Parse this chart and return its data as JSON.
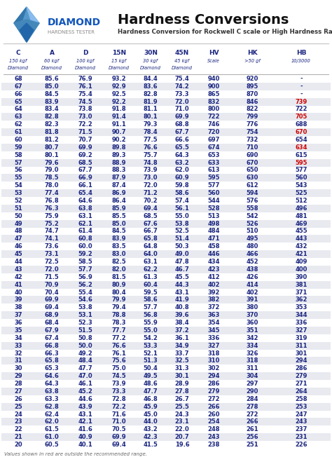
{
  "title": "Hardness Conversions",
  "subtitle": "Hardness Conversion for Rockwell C scale or High Hardness Range",
  "col_headers": [
    "C",
    "A",
    "D",
    "15N",
    "30N",
    "45N",
    "HV",
    "HK",
    "HB"
  ],
  "col_sub1": [
    "150 kgf",
    "60 kgf",
    "100 kgf",
    "15 kgf",
    "30 kgf",
    "45 kgf",
    "Scale",
    ">50 gf",
    "10/3000"
  ],
  "col_sub2": [
    "Diamond",
    "Diamond",
    "Diamond",
    "Diamond",
    "Diamond",
    "Diamond",
    "",
    "",
    ""
  ],
  "rows": [
    [
      68,
      85.6,
      76.9,
      93.2,
      84.4,
      75.4,
      940,
      920,
      "-"
    ],
    [
      67,
      85.0,
      76.1,
      92.9,
      83.6,
      74.2,
      900,
      895,
      "-"
    ],
    [
      66,
      84.5,
      75.4,
      92.5,
      82.8,
      73.3,
      865,
      870,
      "-"
    ],
    [
      65,
      83.9,
      74.5,
      92.2,
      81.9,
      72.0,
      832,
      846,
      "739"
    ],
    [
      64,
      83.4,
      73.8,
      91.8,
      81.1,
      71.0,
      800,
      822,
      "722"
    ],
    [
      63,
      82.8,
      73.0,
      91.4,
      80.1,
      69.9,
      722,
      799,
      "705"
    ],
    [
      62,
      82.3,
      72.2,
      91.1,
      79.3,
      68.8,
      746,
      776,
      "688"
    ],
    [
      61,
      81.8,
      71.5,
      90.7,
      78.4,
      67.7,
      720,
      754,
      "670"
    ],
    [
      60,
      81.2,
      70.7,
      90.2,
      77.5,
      66.6,
      697,
      732,
      "654"
    ],
    [
      59,
      80.7,
      69.9,
      89.8,
      76.6,
      65.5,
      674,
      710,
      "634"
    ],
    [
      58,
      80.1,
      69.2,
      89.3,
      75.7,
      64.3,
      653,
      690,
      "615"
    ],
    [
      57,
      79.6,
      68.5,
      88.9,
      74.8,
      63.2,
      633,
      670,
      "595"
    ],
    [
      56,
      79.0,
      67.7,
      88.3,
      73.9,
      62.0,
      613,
      650,
      "577"
    ],
    [
      55,
      78.5,
      66.9,
      87.9,
      73.0,
      60.9,
      595,
      630,
      "560"
    ],
    [
      54,
      78.0,
      66.1,
      87.4,
      72.0,
      59.8,
      577,
      612,
      "543"
    ],
    [
      53,
      77.4,
      65.4,
      86.9,
      71.2,
      58.6,
      560,
      594,
      "525"
    ],
    [
      52,
      76.8,
      64.6,
      86.4,
      70.2,
      57.4,
      544,
      576,
      "512"
    ],
    [
      51,
      76.3,
      63.8,
      85.9,
      69.4,
      56.1,
      528,
      558,
      "496"
    ],
    [
      50,
      75.9,
      63.1,
      85.5,
      68.5,
      55.0,
      513,
      542,
      "481"
    ],
    [
      49,
      75.2,
      62.1,
      85.0,
      67.6,
      53.8,
      498,
      526,
      "469"
    ],
    [
      48,
      74.7,
      61.4,
      84.5,
      66.7,
      52.5,
      484,
      510,
      "455"
    ],
    [
      47,
      74.1,
      60.8,
      83.9,
      65.8,
      51.4,
      471,
      495,
      "443"
    ],
    [
      46,
      73.6,
      60.0,
      83.5,
      64.8,
      50.3,
      458,
      480,
      "432"
    ],
    [
      45,
      73.1,
      59.2,
      83.0,
      64.0,
      49.0,
      446,
      466,
      "421"
    ],
    [
      44,
      72.5,
      58.5,
      82.5,
      63.1,
      47.8,
      434,
      452,
      "409"
    ],
    [
      43,
      72.0,
      57.7,
      82.0,
      62.2,
      46.7,
      423,
      438,
      "400"
    ],
    [
      42,
      71.5,
      56.9,
      81.5,
      61.3,
      45.5,
      412,
      426,
      "390"
    ],
    [
      41,
      70.9,
      56.2,
      80.9,
      60.4,
      44.3,
      402,
      414,
      "381"
    ],
    [
      40,
      70.4,
      55.4,
      80.4,
      59.5,
      43.1,
      392,
      402,
      "371"
    ],
    [
      39,
      69.9,
      54.6,
      79.9,
      58.6,
      41.9,
      382,
      391,
      "362"
    ],
    [
      38,
      69.4,
      53.8,
      79.4,
      57.7,
      40.8,
      372,
      380,
      "353"
    ],
    [
      37,
      68.9,
      53.1,
      78.8,
      56.8,
      39.6,
      363,
      370,
      "344"
    ],
    [
      36,
      68.4,
      52.3,
      78.3,
      55.9,
      38.4,
      354,
      360,
      "336"
    ],
    [
      35,
      67.9,
      51.5,
      77.7,
      55.0,
      37.2,
      345,
      351,
      "327"
    ],
    [
      34,
      67.4,
      50.8,
      77.2,
      54.2,
      36.1,
      336,
      342,
      "319"
    ],
    [
      33,
      66.8,
      50.0,
      76.6,
      53.3,
      34.9,
      327,
      334,
      "311"
    ],
    [
      32,
      66.3,
      49.2,
      76.1,
      52.1,
      33.7,
      318,
      326,
      "301"
    ],
    [
      31,
      65.8,
      48.4,
      75.6,
      51.3,
      32.5,
      310,
      318,
      "294"
    ],
    [
      30,
      65.3,
      47.7,
      75.0,
      50.4,
      31.3,
      302,
      311,
      "286"
    ],
    [
      29,
      64.6,
      47.0,
      74.5,
      49.5,
      30.1,
      294,
      304,
      "279"
    ],
    [
      28,
      64.3,
      46.1,
      73.9,
      48.6,
      28.9,
      286,
      297,
      "271"
    ],
    [
      27,
      63.8,
      45.2,
      73.3,
      47.7,
      27.8,
      279,
      290,
      "264"
    ],
    [
      26,
      63.3,
      44.6,
      72.8,
      46.8,
      26.7,
      272,
      284,
      "258"
    ],
    [
      25,
      62.8,
      43.9,
      72.2,
      45.9,
      25.5,
      266,
      278,
      "253"
    ],
    [
      24,
      62.4,
      43.1,
      71.6,
      45.0,
      24.3,
      260,
      272,
      "247"
    ],
    [
      23,
      62.0,
      42.1,
      71.0,
      44.0,
      23.1,
      254,
      266,
      "243"
    ],
    [
      22,
      61.5,
      41.6,
      70.5,
      43.2,
      22.0,
      248,
      261,
      "237"
    ],
    [
      21,
      61.0,
      40.9,
      69.9,
      42.3,
      20.7,
      243,
      256,
      "231"
    ],
    [
      20,
      60.5,
      40.1,
      69.4,
      41.5,
      19.6,
      238,
      251,
      "226"
    ]
  ],
  "highlighted_rows": [
    1,
    3,
    5,
    7,
    9,
    11,
    13,
    15,
    17,
    19,
    21,
    23,
    25,
    27,
    29,
    31,
    33,
    35,
    37,
    39,
    41,
    43,
    45,
    47
  ],
  "red_hb_rows": [
    3,
    5,
    7,
    9,
    11
  ],
  "highlight_color": "#e8eaf0",
  "red_color": "#cc0000",
  "blue_color": "#1a2580",
  "footer_note": "Values shown in red are outside the recommended range.",
  "logo_text": "DIAMOND",
  "logo_sub": "HARDNESS TESTER"
}
